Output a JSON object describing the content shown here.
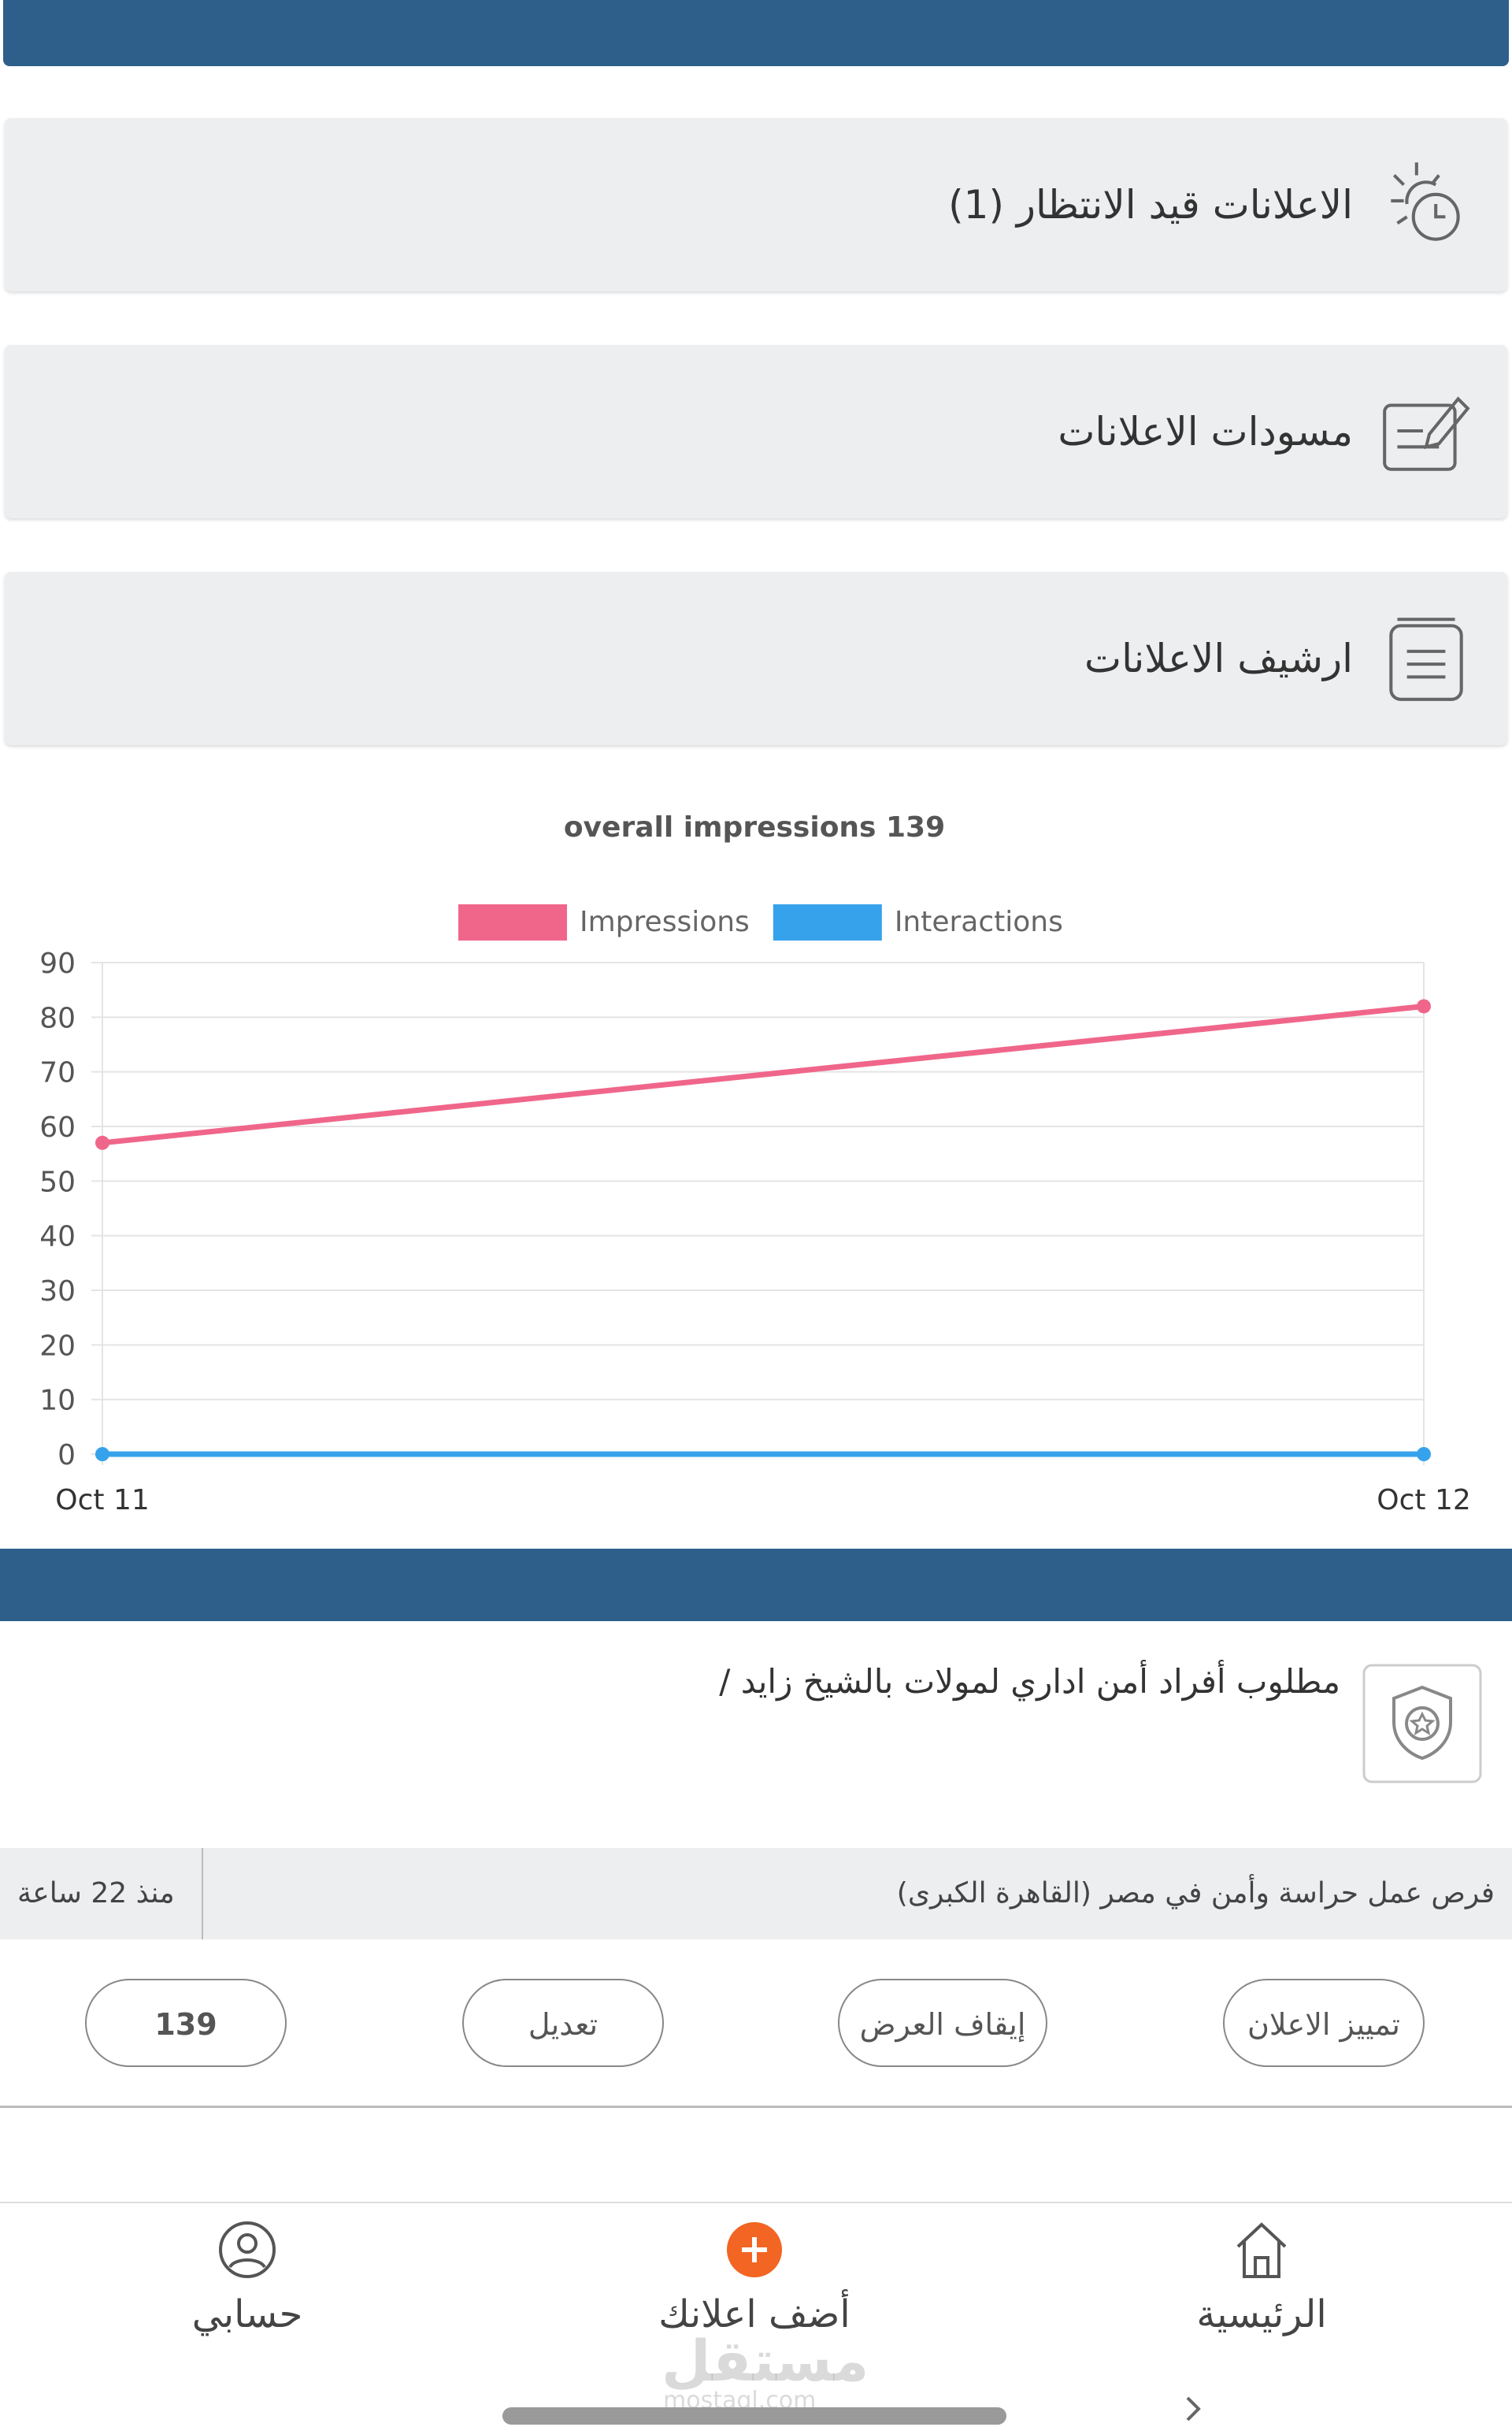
{
  "menu": [
    {
      "label": "الاعلانات قيد الانتظار (1)"
    },
    {
      "label": "مسودات الاعلانات"
    },
    {
      "label": "ارشيف الاعلانات"
    }
  ],
  "chart_data": {
    "type": "line",
    "title": "overall impressions 139",
    "categories": [
      "Oct 11",
      "Oct 12"
    ],
    "series": [
      {
        "name": "Impressions",
        "color": "#f0668a",
        "values": [
          57,
          82
        ]
      },
      {
        "name": "Interactions",
        "color": "#36a2eb",
        "values": [
          0,
          0
        ]
      }
    ],
    "ylim": [
      0,
      90
    ],
    "yticks": [
      0,
      10,
      20,
      30,
      40,
      50,
      60,
      70,
      80,
      90
    ],
    "grid": true
  },
  "listing": {
    "title": "مطلوب أفراد أمن اداري لمولات بالشيخ زايد /",
    "category": "فرص عمل حراسة وأمن في مصر (القاهرة الكبرى)",
    "time": "منذ 22 ساعة",
    "buttons": [
      "139",
      "تعديل",
      "إيقاف العرض",
      "تمييز الاعلان"
    ]
  },
  "nav": [
    "حسابي",
    "أضف اعلانك",
    "الرئيسية"
  ],
  "watermark": {
    "brand": "مستقل",
    "site": "mostaql.com"
  }
}
